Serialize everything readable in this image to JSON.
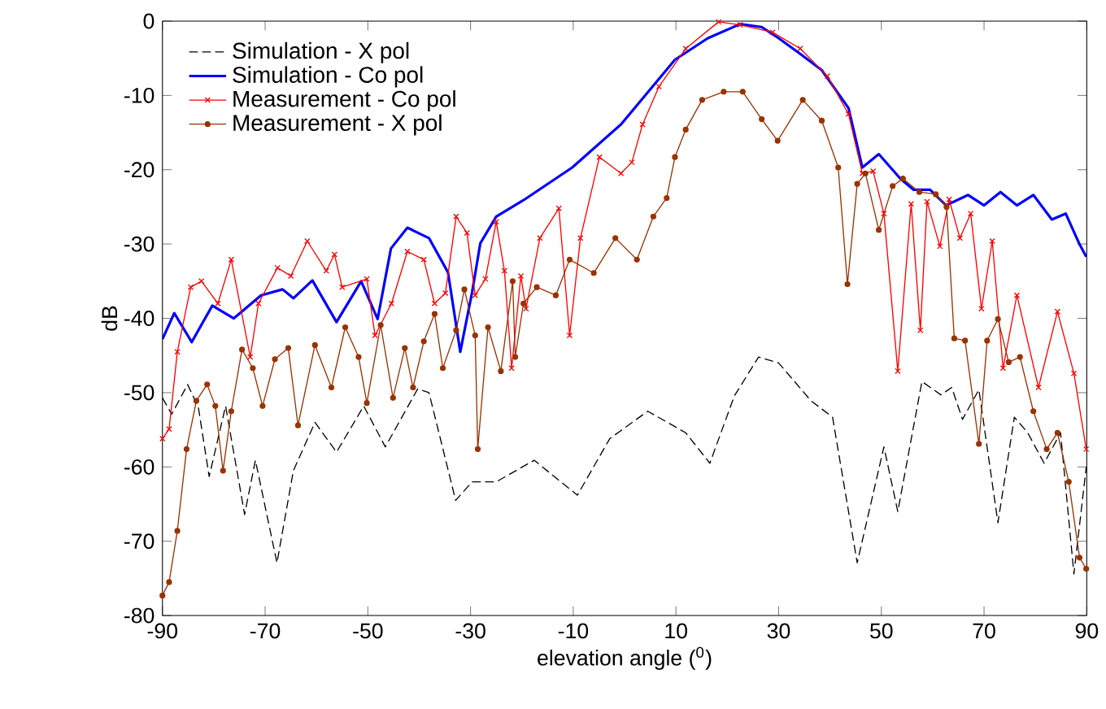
{
  "chart_data": {
    "type": "line",
    "xlabel": "elevation angle ($^{0}$)",
    "ylabel": "dB",
    "xlim": [
      -90,
      90
    ],
    "ylim": [
      -80,
      0
    ],
    "xticks": [
      -90,
      -70,
      -50,
      -30,
      -10,
      10,
      30,
      50,
      70,
      90
    ],
    "yticks": [
      -80,
      -70,
      -60,
      -50,
      -40,
      -30,
      -20,
      -10,
      0
    ],
    "grid": false,
    "legend": "top left",
    "series": [
      {
        "name": "Simulation - X pol",
        "color": "#000000",
        "line_style": "dashed",
        "marker": "none",
        "x": [
          -90,
          -88.2,
          -85.1,
          -83.0,
          -80.9,
          -77.7,
          -74.0,
          -71.9,
          -67.7,
          -64.5,
          -60.3,
          -56.1,
          -50.8,
          -46.6,
          -40.3,
          -38.1,
          -32.9,
          -29.7,
          -25.0,
          -17.6,
          -9.2,
          -2.9,
          4.5,
          11.9,
          16.6,
          21.4,
          26.1,
          30.0,
          36.3,
          40.5,
          45.3,
          50.5,
          53.2,
          57.9,
          61.6,
          63.7,
          65.8,
          69.0,
          72.7,
          75.9,
          78.5,
          81.7,
          84.9,
          87.5,
          89.9
        ],
        "values": [
          -50.7,
          -52.9,
          -48.9,
          -52.0,
          -61.3,
          -51.8,
          -66.4,
          -59.1,
          -72.9,
          -60.5,
          -54.0,
          -58.0,
          -51.8,
          -57.3,
          -49.5,
          -50.0,
          -64.5,
          -62.0,
          -62.0,
          -59.1,
          -63.8,
          -56.2,
          -52.5,
          -55.4,
          -59.5,
          -50.4,
          -45.2,
          -46.0,
          -51.1,
          -53.3,
          -72.9,
          -57.3,
          -66.0,
          -48.5,
          -50.3,
          -49.3,
          -53.6,
          -49.6,
          -67.5,
          -53.3,
          -55.4,
          -59.5,
          -55.4,
          -74.4,
          -60.0
        ]
      },
      {
        "name": "Simulation - Co pol",
        "color": "#0000ff",
        "line_style": "solid",
        "marker": "none",
        "x": [
          -90,
          -87.7,
          -84.3,
          -80.3,
          -76.1,
          -70.8,
          -66.6,
          -64.5,
          -60.8,
          -56.1,
          -51.3,
          -48.1,
          -45.5,
          -42.3,
          -38.1,
          -34.4,
          -32.0,
          -29.7,
          -28.1,
          -25.0,
          -19.7,
          -10.2,
          -0.7,
          9.8,
          16.2,
          22.5,
          26.7,
          30.0,
          34.2,
          38.4,
          43.6,
          46.3,
          49.5,
          53.7,
          56.3,
          59.5,
          62.6,
          66.9,
          70.0,
          73.2,
          76.4,
          79.6,
          83.2,
          85.9,
          88.5,
          89.9
        ],
        "values": [
          -42.8,
          -39.3,
          -43.2,
          -38.3,
          -40.0,
          -36.9,
          -36.1,
          -37.3,
          -34.9,
          -40.5,
          -35.0,
          -40.1,
          -30.6,
          -27.8,
          -29.2,
          -33.8,
          -44.5,
          -36.5,
          -29.9,
          -26.3,
          -24.1,
          -19.7,
          -13.9,
          -5.2,
          -2.3,
          -0.4,
          -0.8,
          -2.3,
          -4.4,
          -6.6,
          -11.7,
          -19.7,
          -17.9,
          -21.2,
          -22.7,
          -22.7,
          -24.8,
          -23.4,
          -24.8,
          -23.0,
          -24.8,
          -23.4,
          -26.7,
          -25.9,
          -29.9,
          -31.7
        ]
      },
      {
        "name": "Measurement - Co pol",
        "color": "#ff0000",
        "line_style": "solid",
        "marker": "cross",
        "x": [
          -90,
          -88.7,
          -87.1,
          -84.5,
          -82.4,
          -79.2,
          -76.6,
          -72.9,
          -71.3,
          -67.6,
          -65.0,
          -61.8,
          -58.1,
          -56.5,
          -55.0,
          -50.2,
          -48.6,
          -45.4,
          -42.3,
          -39.1,
          -37.0,
          -34.9,
          -32.8,
          -30.7,
          -29.1,
          -27.1,
          -25.0,
          -23.4,
          -22.0,
          -20.2,
          -19.2,
          -16.5,
          -12.8,
          -10.7,
          -8.6,
          -4.9,
          -0.7,
          1.4,
          3.5,
          6.7,
          11.9,
          18.3,
          22.5,
          28.8,
          34.2,
          39.5,
          43.6,
          46.3,
          48.4,
          50.5,
          53.2,
          55.8,
          57.6,
          58.9,
          61.4,
          63.2,
          65.3,
          67.4,
          69.5,
          71.6,
          73.7,
          76.4,
          80.6,
          84.3,
          87.5,
          89.9
        ],
        "values": [
          -56.2,
          -54.9,
          -44.5,
          -35.8,
          -35.0,
          -38.0,
          -32.1,
          -45.2,
          -38.0,
          -33.2,
          -34.3,
          -29.6,
          -33.6,
          -31.4,
          -35.8,
          -34.7,
          -42.3,
          -38.0,
          -31.0,
          -32.1,
          -38.0,
          -36.6,
          -26.3,
          -28.5,
          -36.9,
          -34.7,
          -27.0,
          -33.6,
          -46.7,
          -34.3,
          -38.7,
          -29.2,
          -25.2,
          -42.3,
          -29.2,
          -18.3,
          -20.5,
          -19.0,
          -13.9,
          -8.8,
          -3.7,
          -0.1,
          -0.5,
          -1.5,
          -3.7,
          -7.4,
          -12.5,
          -20.5,
          -20.2,
          -25.9,
          -47.1,
          -24.6,
          -41.6,
          -24.3,
          -30.3,
          -24.0,
          -29.2,
          -25.9,
          -38.7,
          -29.6,
          -46.7,
          -36.9,
          -49.3,
          -39.1,
          -47.4,
          -57.6
        ]
      },
      {
        "name": "Measurement - X pol",
        "color": "#993300",
        "line_style": "solid",
        "marker": "circle",
        "x": [
          -90,
          -88.7,
          -87.1,
          -85.3,
          -83.4,
          -81.3,
          -79.7,
          -78.2,
          -76.6,
          -74.5,
          -72.4,
          -70.5,
          -68.1,
          -65.5,
          -63.6,
          -60.3,
          -57.1,
          -54.4,
          -51.8,
          -50.2,
          -47.5,
          -45.1,
          -42.8,
          -41.2,
          -39.1,
          -37.0,
          -35.4,
          -32.8,
          -31.2,
          -29.1,
          -28.6,
          -26.6,
          -24.1,
          -21.8,
          -21.3,
          -19.7,
          -17.1,
          -13.4,
          -10.7,
          -6.0,
          -1.8,
          2.4,
          5.6,
          8.2,
          9.8,
          11.9,
          15.1,
          19.3,
          23.0,
          26.7,
          29.8,
          34.7,
          38.4,
          41.6,
          43.4,
          45.3,
          46.9,
          49.5,
          52.2,
          54.2,
          57.4,
          60.6,
          62.7,
          64.2,
          66.3,
          69.0,
          70.6,
          72.7,
          74.8,
          77.0,
          79.6,
          82.2,
          84.3,
          86.5,
          88.6,
          89.9
        ],
        "values": [
          -77.3,
          -75.5,
          -68.6,
          -57.6,
          -51.1,
          -48.9,
          -51.8,
          -60.5,
          -52.5,
          -44.2,
          -46.7,
          -51.8,
          -45.5,
          -44.0,
          -54.4,
          -43.6,
          -49.3,
          -41.2,
          -45.2,
          -51.4,
          -40.9,
          -50.7,
          -44.0,
          -49.3,
          -43.1,
          -39.4,
          -46.7,
          -41.6,
          -36.1,
          -42.3,
          -57.6,
          -41.2,
          -47.1,
          -35.0,
          -45.2,
          -38.0,
          -35.8,
          -36.9,
          -32.1,
          -33.9,
          -29.2,
          -32.1,
          -26.3,
          -23.8,
          -18.3,
          -14.6,
          -10.6,
          -9.5,
          -9.5,
          -13.2,
          -16.1,
          -10.6,
          -13.4,
          -19.7,
          -35.4,
          -21.9,
          -20.5,
          -28.1,
          -22.2,
          -21.2,
          -23.0,
          -23.3,
          -25.0,
          -42.7,
          -43.0,
          -56.9,
          -43.0,
          -40.1,
          -45.9,
          -45.2,
          -52.5,
          -57.6,
          -55.4,
          -62.0,
          -72.2,
          -73.7
        ]
      }
    ]
  }
}
